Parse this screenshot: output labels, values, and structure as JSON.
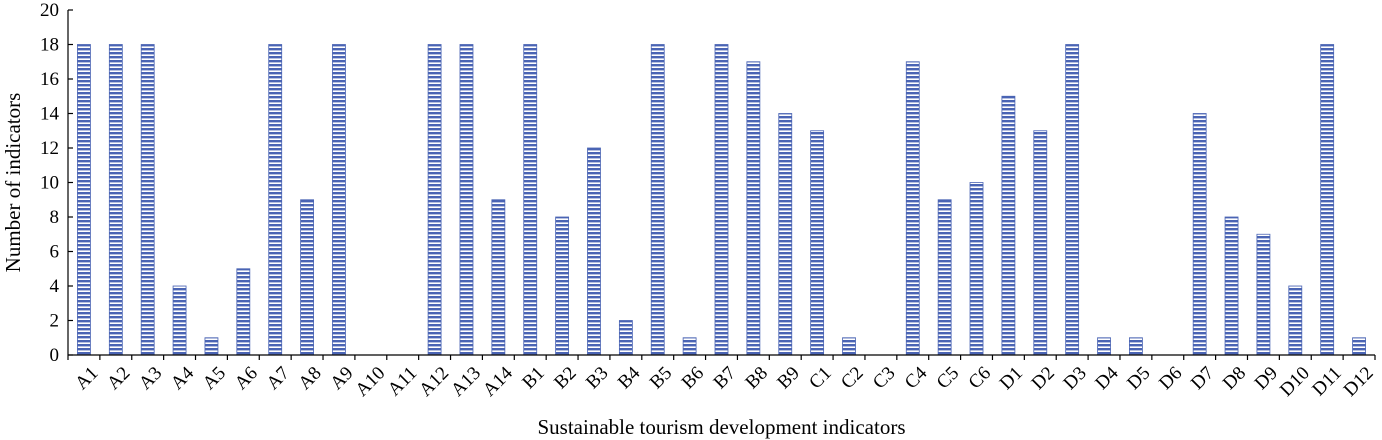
{
  "chart_data": {
    "type": "bar",
    "xlabel": "Sustainable tourism development indicators",
    "ylabel": "Number of indicators",
    "ylim": [
      0,
      20
    ],
    "yticks": [
      0,
      2,
      4,
      6,
      8,
      10,
      12,
      14,
      16,
      18,
      20
    ],
    "grid": false,
    "bar_color": "#4a64b4",
    "categories": [
      "A1",
      "A2",
      "A3",
      "A4",
      "A5",
      "A6",
      "A7",
      "A8",
      "A9",
      "A10",
      "A11",
      "A12",
      "A13",
      "A14",
      "B1",
      "B2",
      "B3",
      "B4",
      "B5",
      "B6",
      "B7",
      "B8",
      "B9",
      "C1",
      "C2",
      "C3",
      "C4",
      "C5",
      "C6",
      "D1",
      "D2",
      "D3",
      "D4",
      "D5",
      "D6",
      "D7",
      "D8",
      "D9",
      "D10",
      "D11",
      "D12"
    ],
    "values": [
      18,
      18,
      18,
      4,
      1,
      5,
      18,
      9,
      18,
      0,
      0,
      18,
      18,
      9,
      18,
      8,
      12,
      2,
      18,
      1,
      18,
      17,
      14,
      13,
      1,
      0,
      17,
      9,
      10,
      15,
      13,
      18,
      1,
      1,
      0,
      14,
      8,
      7,
      4,
      18,
      1
    ]
  }
}
